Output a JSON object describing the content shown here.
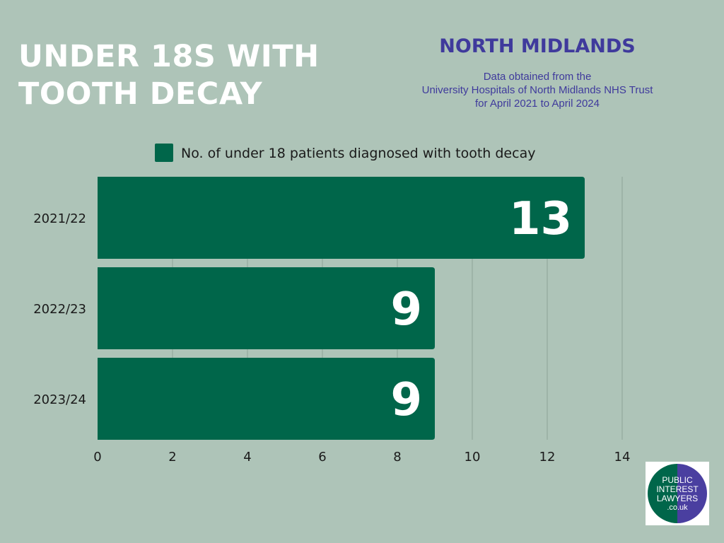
{
  "title": {
    "line1": "UNDER 18S WITH",
    "line2": "TOOTH DECAY"
  },
  "region": "NORTH MIDLANDS",
  "source": {
    "line1": "Data obtained from the",
    "line2": "University Hospitals of North Midlands NHS Trust",
    "line3": "for April 2021 to April 2024"
  },
  "logo": {
    "line1": "PUBLIC",
    "line2": "INTEREST",
    "line3": "LAWYERS",
    "line4": ".co.uk",
    "colors": {
      "left": "#00664a",
      "right": "#4a3fa0"
    }
  },
  "chart_data": {
    "type": "bar",
    "orientation": "horizontal",
    "categories": [
      "2021/22",
      "2022/23",
      "2023/24"
    ],
    "series": [
      {
        "name": "No. of under 18 patients diagnosed with tooth decay",
        "values": [
          13,
          9,
          9
        ],
        "color": "#00664a"
      }
    ],
    "xlim": [
      0,
      14
    ],
    "xticks": [
      0,
      2,
      4,
      6,
      8,
      10,
      12,
      14
    ],
    "grid": true,
    "legend": "top",
    "data_labels": true
  }
}
